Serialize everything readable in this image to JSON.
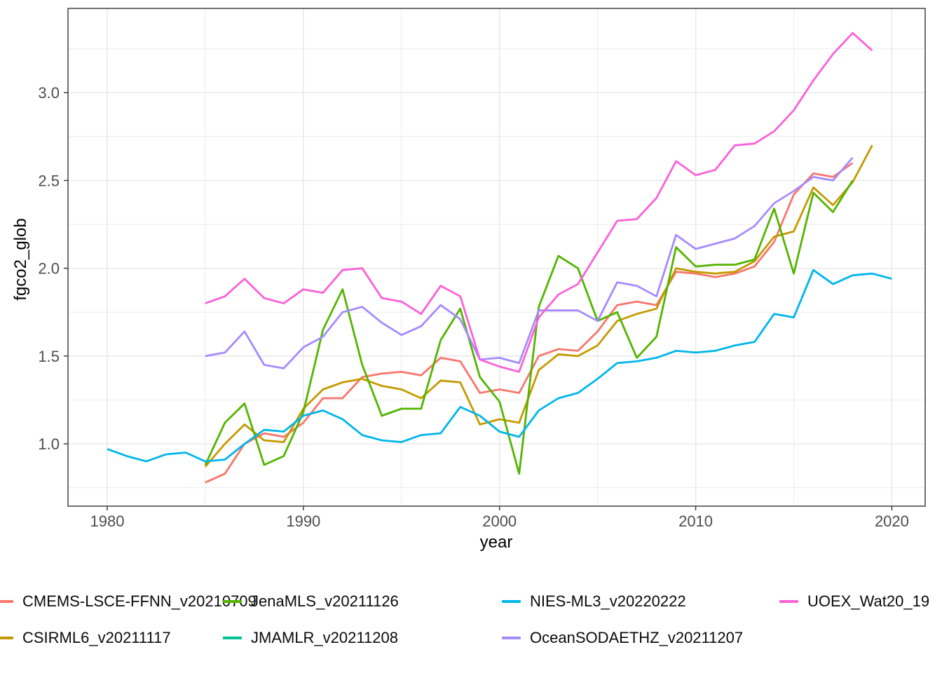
{
  "figure": {
    "x_axis_title": "year",
    "y_axis_title": "fgco2_glob"
  },
  "style": {
    "background": "#ffffff",
    "panel_background": "#ffffff",
    "grid_color": "#e7e7e7",
    "panel_border_color": "#333333",
    "tick_color": "#333333",
    "tick_label_color": "#4d4d4d",
    "axis_title_color": "#000000",
    "legend_text_color": "#0a0a0a"
  },
  "legend": {
    "entries": [
      {
        "label": "CMEMS-LSCE-FFNN_v20210709",
        "color": "#F8766D",
        "row": 0,
        "col": 0
      },
      {
        "label": "CSIRML6_v20211117",
        "color": "#C49A00",
        "row": 1,
        "col": 0
      },
      {
        "label": "JenaMLS_v20211126",
        "color": "#53B400",
        "row": 0,
        "col": 1
      },
      {
        "label": "JMAMLR_v20211208",
        "color": "#00C094",
        "row": 1,
        "col": 1
      },
      {
        "label": "NIES-ML3_v20220222",
        "color": "#00B6EB",
        "row": 0,
        "col": 2
      },
      {
        "label": "OceanSODAETHZ_v20211207",
        "color": "#A58AFF",
        "row": 1,
        "col": 2
      },
      {
        "label": "UOEX_Wat20_19",
        "color": "#FB61D7",
        "row": 0,
        "col": 3
      }
    ]
  },
  "chart_data": {
    "type": "line",
    "title": "",
    "xlabel": "year",
    "ylabel": "fgco2_glob",
    "xlim": [
      1978,
      2021.7
    ],
    "ylim": [
      0.645,
      3.48
    ],
    "x_ticks": [
      1980,
      1990,
      2000,
      2010,
      2020
    ],
    "x_tick_labels": [
      "1980",
      "1990",
      "2000",
      "2010",
      "2020"
    ],
    "x_minor": [
      1985,
      1995,
      2005,
      2015
    ],
    "y_ticks": [
      1.0,
      1.5,
      2.0,
      2.5,
      3.0
    ],
    "y_tick_labels": [
      "1.0",
      "1.5",
      "2.0",
      "2.5",
      "3.0"
    ],
    "y_minor": [
      0.75,
      1.25,
      1.75,
      2.25,
      2.75,
      3.25
    ],
    "grid": true,
    "legend_position": "bottom",
    "series": [
      {
        "name": "CMEMS-LSCE-FFNN_v20210709",
        "color": "#F8766D",
        "start_year": 1985,
        "values": [
          0.78,
          0.83,
          1.0,
          1.06,
          1.04,
          1.12,
          1.26,
          1.26,
          1.38,
          1.4,
          1.41,
          1.39,
          1.49,
          1.47,
          1.29,
          1.31,
          1.29,
          1.5,
          1.54,
          1.53,
          1.64,
          1.79,
          1.81,
          1.79,
          1.98,
          1.97,
          1.95,
          1.97,
          2.01,
          2.15,
          2.42,
          2.54,
          2.52,
          2.6
        ]
      },
      {
        "name": "CSIRML6_v20211117",
        "color": "#C49A00",
        "start_year": 1985,
        "values": [
          0.87,
          1.0,
          1.11,
          1.02,
          1.01,
          1.2,
          1.31,
          1.35,
          1.37,
          1.33,
          1.31,
          1.26,
          1.36,
          1.35,
          1.11,
          1.14,
          1.12,
          1.42,
          1.51,
          1.5,
          1.56,
          1.7,
          1.74,
          1.77,
          2.0,
          1.98,
          1.97,
          1.98,
          2.04,
          2.18,
          2.21,
          2.46,
          2.36,
          2.49,
          2.7
        ]
      },
      {
        "name": "JenaMLS_v20211126",
        "color": "#53B400",
        "start_year": 1985,
        "values": [
          0.88,
          1.12,
          1.23,
          0.88,
          0.93,
          1.18,
          1.65,
          1.88,
          1.45,
          1.16,
          1.2,
          1.2,
          1.59,
          1.77,
          1.38,
          1.24,
          0.83,
          1.78,
          2.07,
          2.0,
          1.7,
          1.75,
          1.49,
          1.61,
          2.12,
          2.01,
          2.02,
          2.02,
          2.05,
          2.34,
          1.97,
          2.43,
          2.32,
          2.5
        ]
      },
      {
        "name": "JMAMLR_v20211208",
        "color": "#00C094",
        "start_year": 1985,
        "values": [],
        "visible_in_plot": false
      },
      {
        "name": "NIES-ML3_v20220222",
        "color": "#00B6EB",
        "start_year": 1980,
        "values": [
          0.97,
          0.93,
          0.9,
          0.94,
          0.95,
          0.9,
          0.91,
          1.0,
          1.08,
          1.07,
          1.16,
          1.19,
          1.14,
          1.05,
          1.02,
          1.01,
          1.05,
          1.06,
          1.21,
          1.16,
          1.07,
          1.04,
          1.19,
          1.26,
          1.29,
          1.37,
          1.46,
          1.47,
          1.49,
          1.53,
          1.52,
          1.53,
          1.56,
          1.58,
          1.74,
          1.72,
          1.99,
          1.91,
          1.96,
          1.97,
          1.94
        ]
      },
      {
        "name": "OceanSODAETHZ_v20211207",
        "color": "#A58AFF",
        "start_year": 1985,
        "values": [
          1.5,
          1.52,
          1.64,
          1.45,
          1.43,
          1.55,
          1.61,
          1.75,
          1.78,
          1.69,
          1.62,
          1.67,
          1.79,
          1.71,
          1.48,
          1.49,
          1.46,
          1.76,
          1.76,
          1.76,
          1.7,
          1.92,
          1.9,
          1.84,
          2.19,
          2.11,
          2.14,
          2.17,
          2.24,
          2.37,
          2.44,
          2.52,
          2.5,
          2.63
        ]
      },
      {
        "name": "UOEX_Wat20_19",
        "color": "#FB61D7",
        "start_year": 1985,
        "values": [
          1.8,
          1.84,
          1.94,
          1.83,
          1.8,
          1.88,
          1.86,
          1.99,
          2.0,
          1.83,
          1.81,
          1.74,
          1.9,
          1.84,
          1.48,
          1.44,
          1.41,
          1.72,
          1.85,
          1.91,
          2.09,
          2.27,
          2.28,
          2.4,
          2.61,
          2.53,
          2.56,
          2.7,
          2.71,
          2.78,
          2.9,
          3.07,
          3.22,
          3.34,
          3.24
        ]
      }
    ]
  }
}
